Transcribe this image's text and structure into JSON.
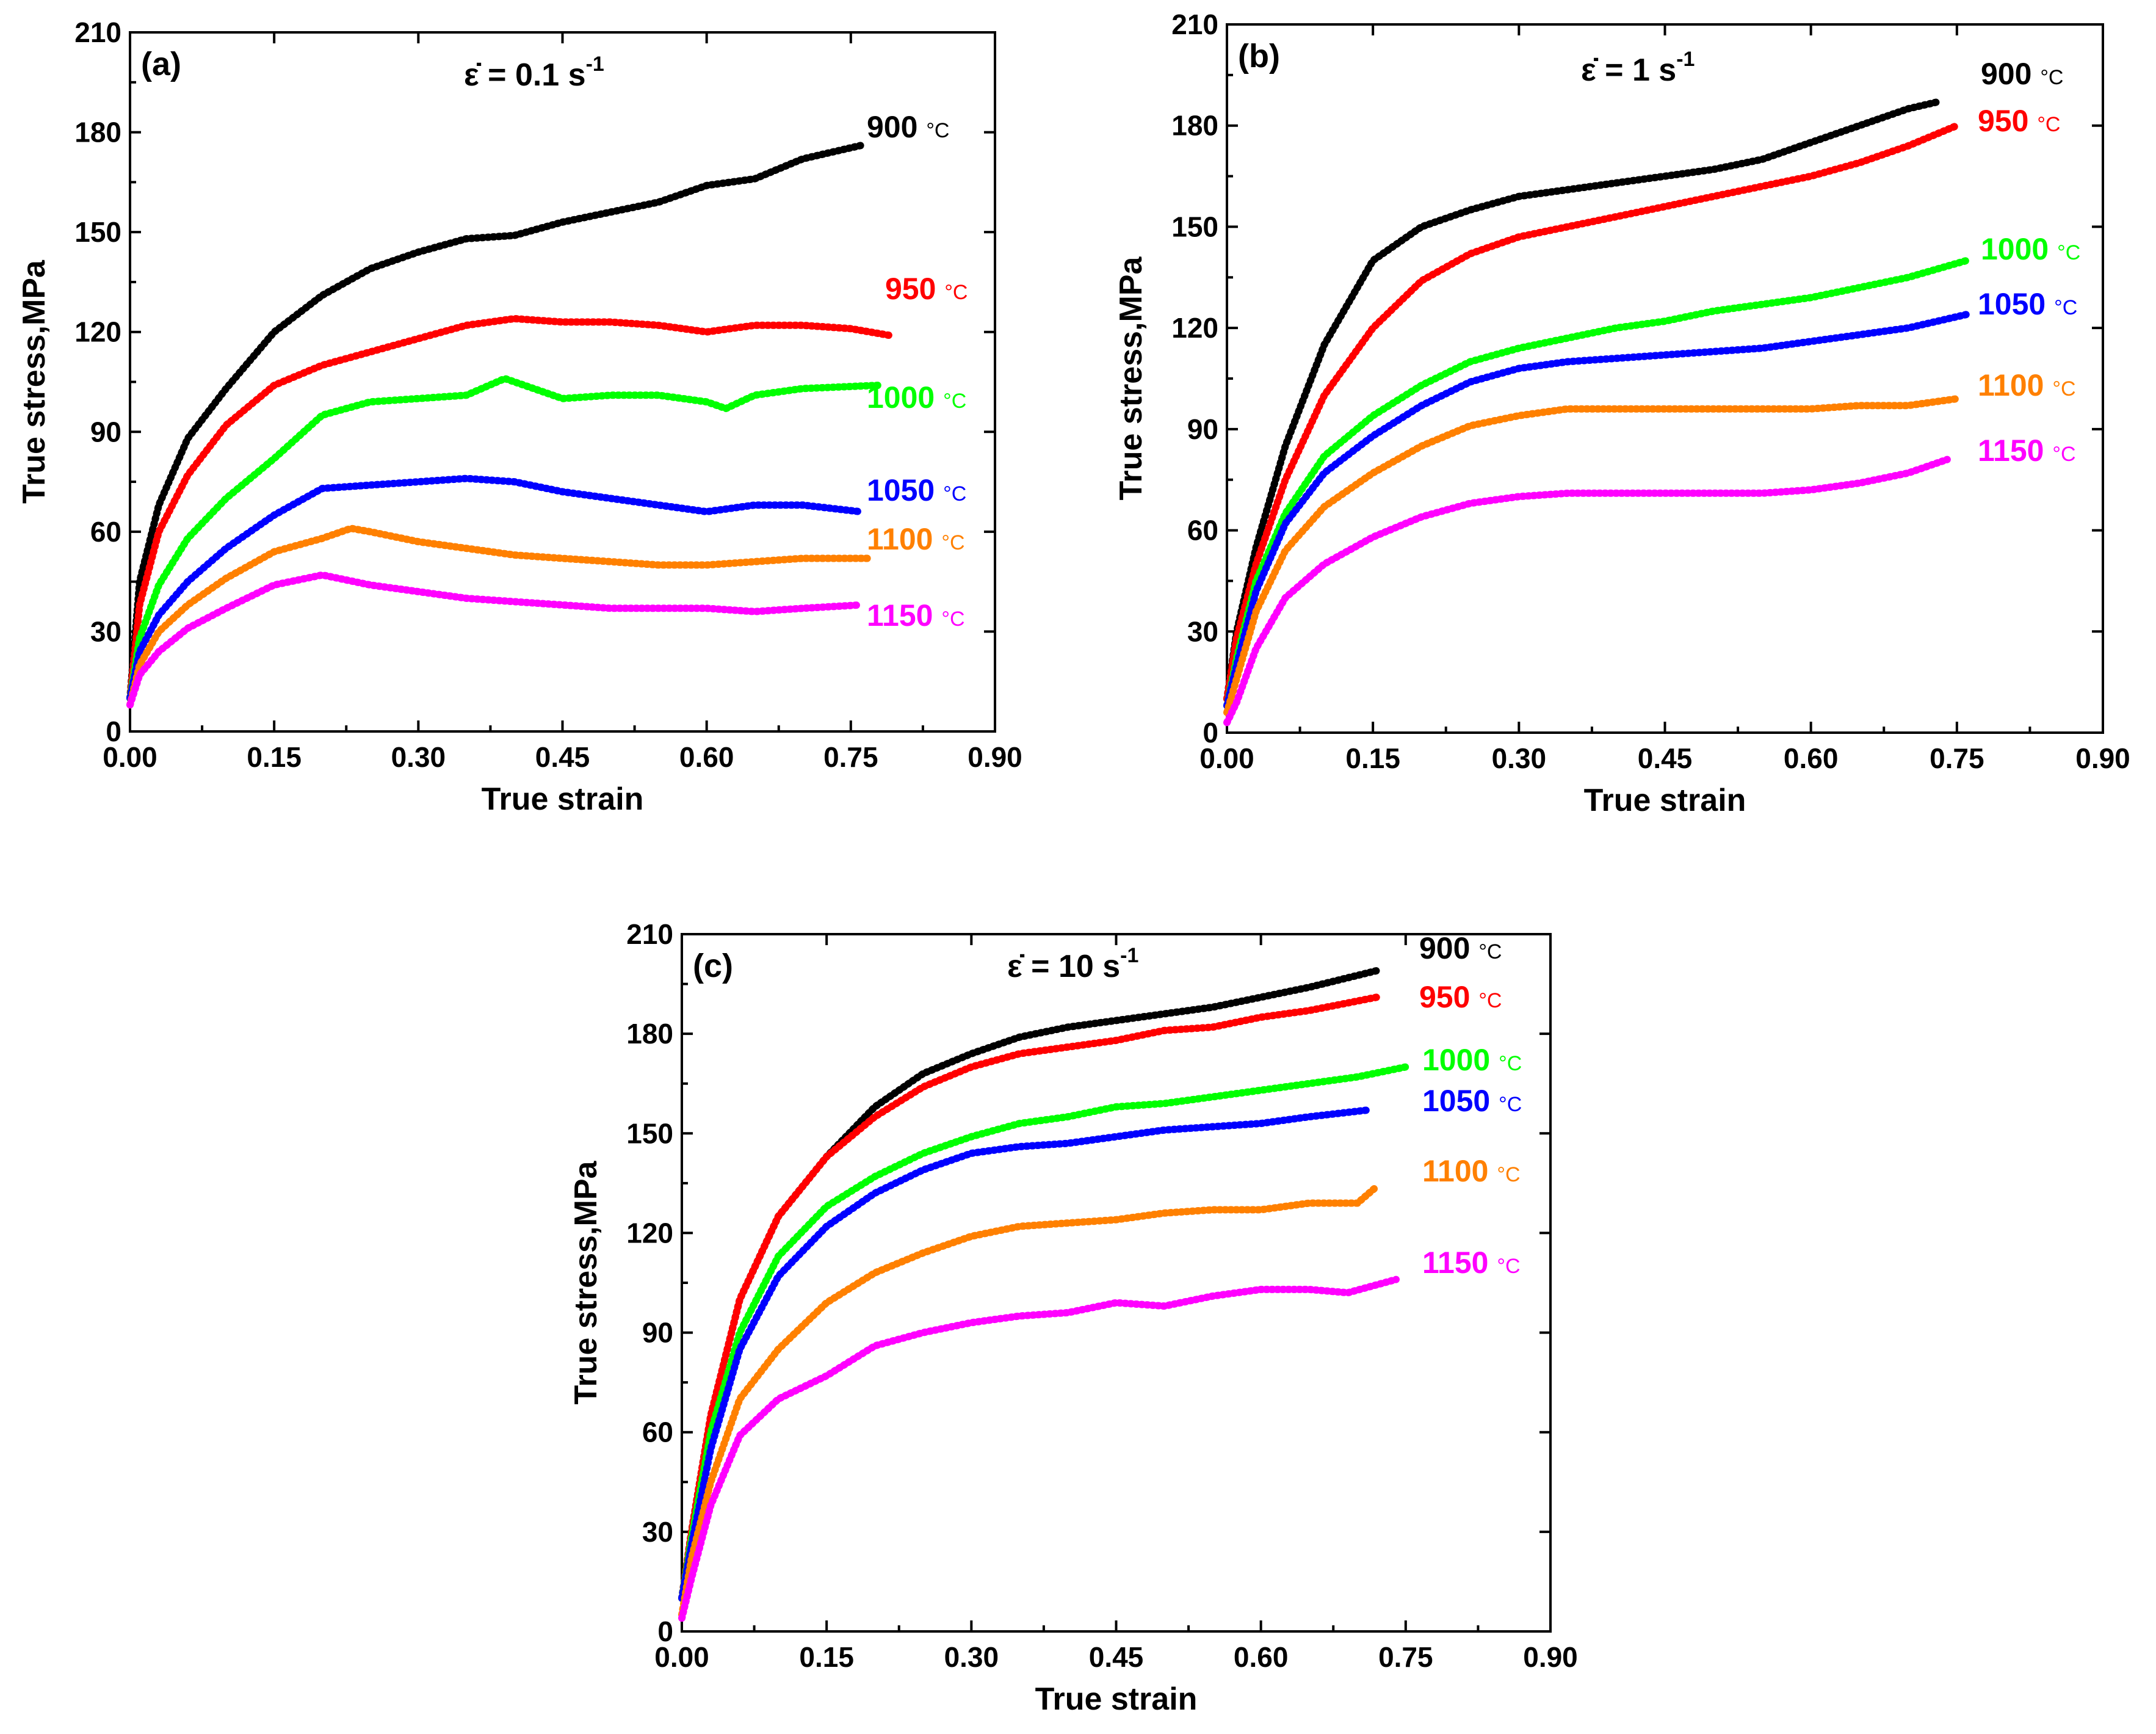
{
  "chart_data": [
    {
      "type": "line",
      "panel_label": "(a)",
      "rate_symbol": "ε̇ = 0.1 s",
      "rate_exponent": "-1",
      "xlabel": "True strain",
      "ylabel": "True stress,MPa",
      "xlim": [
        0,
        0.9
      ],
      "ylim": [
        0,
        210
      ],
      "xticks": [
        0,
        0.15,
        0.3,
        0.45,
        0.6,
        0.75,
        0.9
      ],
      "xtick_labels": [
        "0.00",
        "0.15",
        "0.30",
        "0.45",
        "0.60",
        "0.75",
        "0.90"
      ],
      "yticks": [
        0,
        30,
        60,
        90,
        120,
        150,
        180,
        210
      ],
      "ytick_labels": [
        "0",
        "30",
        "60",
        "90",
        "120",
        "150",
        "180",
        "210"
      ],
      "series": [
        {
          "name": "900",
          "unit": "°C",
          "color": "#000000",
          "x": [
            0,
            0.01,
            0.03,
            0.06,
            0.1,
            0.15,
            0.2,
            0.25,
            0.3,
            0.35,
            0.4,
            0.45,
            0.5,
            0.55,
            0.6,
            0.65,
            0.7,
            0.76
          ],
          "y": [
            10,
            45,
            68,
            88,
            103,
            120,
            131,
            139,
            144,
            148,
            149,
            153,
            156,
            159,
            164,
            166,
            172,
            176
          ]
        },
        {
          "name": "950",
          "unit": "°C",
          "color": "#ff0000",
          "x": [
            0,
            0.01,
            0.03,
            0.06,
            0.1,
            0.15,
            0.2,
            0.25,
            0.3,
            0.35,
            0.4,
            0.45,
            0.5,
            0.55,
            0.6,
            0.65,
            0.7,
            0.75,
            0.79
          ],
          "y": [
            10,
            38,
            60,
            77,
            92,
            104,
            110,
            114,
            118,
            122,
            124,
            123,
            123,
            122,
            120,
            122,
            122,
            121,
            119
          ]
        },
        {
          "name": "1000",
          "unit": "°C",
          "color": "#00ff00",
          "x": [
            0,
            0.01,
            0.03,
            0.06,
            0.1,
            0.15,
            0.2,
            0.25,
            0.3,
            0.35,
            0.39,
            0.45,
            0.5,
            0.55,
            0.6,
            0.62,
            0.65,
            0.7,
            0.78
          ],
          "y": [
            10,
            28,
            44,
            58,
            70,
            82,
            95,
            99,
            100,
            101,
            106,
            100,
            101,
            101,
            99,
            97,
            101,
            103,
            104
          ]
        },
        {
          "name": "1050",
          "unit": "°C",
          "color": "#0000ff",
          "x": [
            0,
            0.01,
            0.03,
            0.06,
            0.1,
            0.15,
            0.2,
            0.25,
            0.3,
            0.35,
            0.4,
            0.45,
            0.5,
            0.55,
            0.6,
            0.65,
            0.7,
            0.76
          ],
          "y": [
            10,
            24,
            35,
            45,
            55,
            65,
            73,
            74,
            75,
            76,
            75,
            72,
            70,
            68,
            66,
            68,
            68,
            66
          ]
        },
        {
          "name": "1100",
          "unit": "°C",
          "color": "#ff8000",
          "x": [
            0,
            0.01,
            0.03,
            0.06,
            0.1,
            0.15,
            0.2,
            0.23,
            0.25,
            0.3,
            0.35,
            0.4,
            0.45,
            0.5,
            0.55,
            0.6,
            0.65,
            0.7,
            0.77
          ],
          "y": [
            8,
            20,
            30,
            38,
            46,
            54,
            58,
            61,
            60,
            57,
            55,
            53,
            52,
            51,
            50,
            50,
            51,
            52,
            52
          ]
        },
        {
          "name": "1150",
          "unit": "°C",
          "color": "#ff00ff",
          "x": [
            0,
            0.01,
            0.03,
            0.06,
            0.1,
            0.15,
            0.2,
            0.25,
            0.3,
            0.35,
            0.4,
            0.45,
            0.5,
            0.55,
            0.6,
            0.65,
            0.7,
            0.76
          ],
          "y": [
            8,
            17,
            24,
            31,
            37,
            44,
            47,
            44,
            42,
            40,
            39,
            38,
            37,
            37,
            37,
            36,
            37,
            38
          ]
        }
      ]
    },
    {
      "type": "line",
      "panel_label": "(b)",
      "rate_symbol": "ε̇ = 1 s",
      "rate_exponent": "-1",
      "xlabel": "True strain",
      "ylabel": "True stress,MPa",
      "xlim": [
        0,
        0.9
      ],
      "ylim": [
        0,
        210
      ],
      "xticks": [
        0,
        0.15,
        0.3,
        0.45,
        0.6,
        0.75,
        0.9
      ],
      "xtick_labels": [
        "0.00",
        "0.15",
        "0.30",
        "0.45",
        "0.60",
        "0.75",
        "0.90"
      ],
      "yticks": [
        0,
        30,
        60,
        90,
        120,
        150,
        180,
        210
      ],
      "ytick_labels": [
        "0",
        "30",
        "60",
        "90",
        "120",
        "150",
        "180",
        "210"
      ],
      "series": [
        {
          "name": "900",
          "unit": "°C",
          "color": "#000000",
          "x": [
            0,
            0.01,
            0.03,
            0.06,
            0.1,
            0.15,
            0.2,
            0.25,
            0.3,
            0.35,
            0.4,
            0.45,
            0.5,
            0.55,
            0.6,
            0.65,
            0.7,
            0.73
          ],
          "y": [
            10,
            30,
            55,
            85,
            115,
            140,
            150,
            155,
            159,
            161,
            163,
            165,
            167,
            170,
            175,
            180,
            185,
            187
          ]
        },
        {
          "name": "950",
          "unit": "°C",
          "color": "#ff0000",
          "x": [
            0,
            0.01,
            0.03,
            0.06,
            0.1,
            0.15,
            0.2,
            0.25,
            0.3,
            0.35,
            0.4,
            0.45,
            0.5,
            0.55,
            0.6,
            0.65,
            0.7,
            0.75
          ],
          "y": [
            10,
            28,
            50,
            75,
            100,
            120,
            134,
            142,
            147,
            150,
            153,
            156,
            159,
            162,
            165,
            169,
            174,
            180
          ]
        },
        {
          "name": "1000",
          "unit": "°C",
          "color": "#00ff00",
          "x": [
            0,
            0.01,
            0.03,
            0.06,
            0.1,
            0.15,
            0.2,
            0.25,
            0.3,
            0.35,
            0.4,
            0.45,
            0.5,
            0.55,
            0.6,
            0.65,
            0.7,
            0.76
          ],
          "y": [
            8,
            22,
            45,
            65,
            82,
            94,
            103,
            110,
            114,
            117,
            120,
            122,
            125,
            127,
            129,
            132,
            135,
            140
          ]
        },
        {
          "name": "1050",
          "unit": "°C",
          "color": "#0000ff",
          "x": [
            0,
            0.01,
            0.03,
            0.06,
            0.1,
            0.15,
            0.2,
            0.25,
            0.3,
            0.35,
            0.4,
            0.45,
            0.5,
            0.55,
            0.6,
            0.65,
            0.7,
            0.76
          ],
          "y": [
            8,
            20,
            42,
            62,
            77,
            88,
            97,
            104,
            108,
            110,
            111,
            112,
            113,
            114,
            116,
            118,
            120,
            124
          ]
        },
        {
          "name": "1100",
          "unit": "°C",
          "color": "#ff8000",
          "x": [
            0,
            0.01,
            0.03,
            0.06,
            0.1,
            0.15,
            0.2,
            0.25,
            0.3,
            0.35,
            0.4,
            0.45,
            0.5,
            0.55,
            0.6,
            0.65,
            0.7,
            0.75
          ],
          "y": [
            6,
            16,
            36,
            54,
            67,
            77,
            85,
            91,
            94,
            96,
            96,
            96,
            96,
            96,
            96,
            97,
            97,
            99
          ]
        },
        {
          "name": "1150",
          "unit": "°C",
          "color": "#ff00ff",
          "x": [
            0,
            0.01,
            0.03,
            0.06,
            0.1,
            0.15,
            0.2,
            0.25,
            0.3,
            0.35,
            0.4,
            0.45,
            0.5,
            0.55,
            0.6,
            0.65,
            0.7,
            0.74
          ],
          "y": [
            3,
            9,
            25,
            40,
            50,
            58,
            64,
            68,
            70,
            71,
            71,
            71,
            71,
            71,
            72,
            74,
            77,
            81
          ]
        }
      ]
    },
    {
      "type": "line",
      "panel_label": "(c)",
      "rate_symbol": "ε̇ = 10 s",
      "rate_exponent": "-1",
      "xlabel": "True strain",
      "ylabel": "True stress,MPa",
      "xlim": [
        0,
        0.9
      ],
      "ylim": [
        0,
        210
      ],
      "xticks": [
        0,
        0.15,
        0.3,
        0.45,
        0.6,
        0.75,
        0.9
      ],
      "xtick_labels": [
        "0.00",
        "0.15",
        "0.30",
        "0.45",
        "0.60",
        "0.75",
        "0.90"
      ],
      "yticks": [
        0,
        30,
        60,
        90,
        120,
        150,
        180,
        210
      ],
      "ytick_labels": [
        "0",
        "30",
        "60",
        "90",
        "120",
        "150",
        "180",
        "210"
      ],
      "series": [
        {
          "name": "900",
          "unit": "°C",
          "color": "#000000",
          "x": [
            0,
            0.01,
            0.03,
            0.06,
            0.1,
            0.15,
            0.2,
            0.25,
            0.3,
            0.35,
            0.4,
            0.45,
            0.5,
            0.55,
            0.6,
            0.65,
            0.72
          ],
          "y": [
            10,
            30,
            65,
            100,
            125,
            143,
            158,
            168,
            174,
            179,
            182,
            184,
            186,
            188,
            191,
            194,
            199
          ]
        },
        {
          "name": "950",
          "unit": "°C",
          "color": "#ff0000",
          "x": [
            0,
            0.01,
            0.03,
            0.06,
            0.1,
            0.15,
            0.2,
            0.25,
            0.3,
            0.35,
            0.4,
            0.45,
            0.5,
            0.55,
            0.6,
            0.65,
            0.72
          ],
          "y": [
            10,
            30,
            65,
            100,
            125,
            143,
            155,
            164,
            170,
            174,
            176,
            178,
            181,
            182,
            185,
            187,
            191
          ]
        },
        {
          "name": "1000",
          "unit": "°C",
          "color": "#00ff00",
          "x": [
            0,
            0.01,
            0.03,
            0.06,
            0.1,
            0.15,
            0.2,
            0.25,
            0.3,
            0.35,
            0.4,
            0.45,
            0.5,
            0.55,
            0.6,
            0.65,
            0.7,
            0.75
          ],
          "y": [
            10,
            28,
            60,
            90,
            113,
            128,
            137,
            144,
            149,
            153,
            155,
            158,
            159,
            161,
            163,
            165,
            167,
            170
          ]
        },
        {
          "name": "1050",
          "unit": "°C",
          "color": "#0000ff",
          "x": [
            0,
            0.01,
            0.03,
            0.06,
            0.1,
            0.15,
            0.2,
            0.25,
            0.3,
            0.35,
            0.4,
            0.45,
            0.5,
            0.55,
            0.6,
            0.65,
            0.71
          ],
          "y": [
            10,
            26,
            55,
            85,
            107,
            122,
            132,
            139,
            144,
            146,
            147,
            149,
            151,
            152,
            153,
            155,
            157
          ]
        },
        {
          "name": "1100",
          "unit": "°C",
          "color": "#ff8000",
          "x": [
            0,
            0.01,
            0.03,
            0.06,
            0.1,
            0.15,
            0.2,
            0.25,
            0.3,
            0.35,
            0.4,
            0.45,
            0.5,
            0.55,
            0.6,
            0.65,
            0.7,
            0.72
          ],
          "y": [
            5,
            22,
            45,
            70,
            85,
            99,
            108,
            114,
            119,
            122,
            123,
            124,
            126,
            127,
            127,
            129,
            129,
            134
          ]
        },
        {
          "name": "1150",
          "unit": "°C",
          "color": "#ff00ff",
          "x": [
            0,
            0.01,
            0.03,
            0.06,
            0.1,
            0.15,
            0.2,
            0.25,
            0.3,
            0.35,
            0.4,
            0.45,
            0.5,
            0.55,
            0.6,
            0.65,
            0.69,
            0.74
          ],
          "y": [
            4,
            16,
            38,
            59,
            70,
            77,
            86,
            90,
            93,
            95,
            96,
            99,
            98,
            101,
            103,
            103,
            102,
            106
          ]
        }
      ]
    }
  ]
}
